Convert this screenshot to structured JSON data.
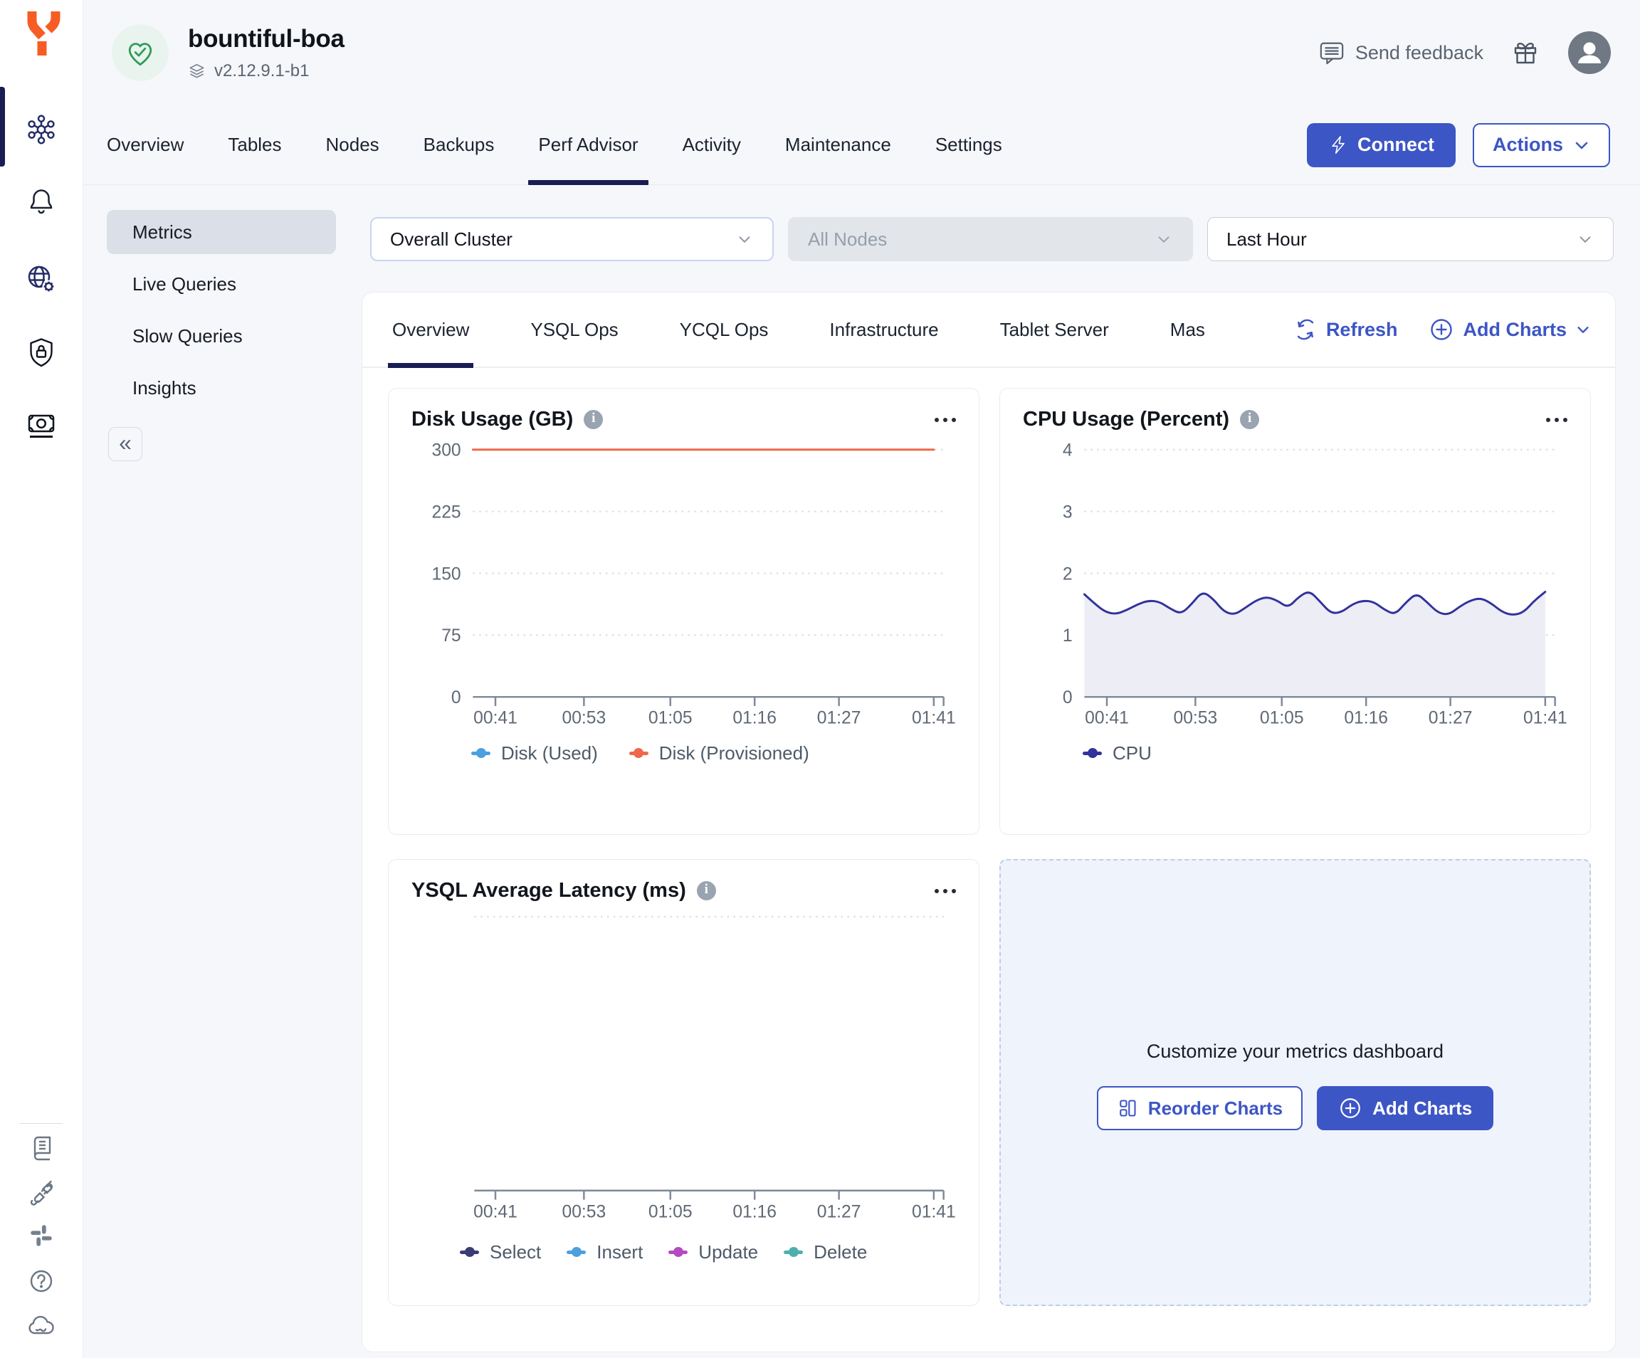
{
  "header": {
    "cluster_name": "bountiful-boa",
    "version": "v2.12.9.1-b1",
    "send_feedback_label": "Send feedback"
  },
  "nav_tabs": [
    {
      "label": "Overview",
      "active": false
    },
    {
      "label": "Tables",
      "active": false
    },
    {
      "label": "Nodes",
      "active": false
    },
    {
      "label": "Backups",
      "active": false
    },
    {
      "label": "Perf Advisor",
      "active": true
    },
    {
      "label": "Activity",
      "active": false
    },
    {
      "label": "Maintenance",
      "active": false
    },
    {
      "label": "Settings",
      "active": false
    }
  ],
  "actions": {
    "connect_label": "Connect",
    "actions_label": "Actions"
  },
  "subnav": {
    "items": [
      {
        "label": "Metrics",
        "active": true
      },
      {
        "label": "Live Queries",
        "active": false
      },
      {
        "label": "Slow Queries",
        "active": false
      },
      {
        "label": "Insights",
        "active": false
      }
    ]
  },
  "filters": {
    "scope": "Overall Cluster",
    "nodes": "All Nodes",
    "time_range": "Last Hour"
  },
  "metrics_tabs": [
    {
      "label": "Overview",
      "active": true
    },
    {
      "label": "YSQL Ops",
      "active": false
    },
    {
      "label": "YCQL Ops",
      "active": false
    },
    {
      "label": "Infrastructure",
      "active": false
    },
    {
      "label": "Tablet Server",
      "active": false
    },
    {
      "label": "Mas",
      "active": false
    }
  ],
  "metrics_toolbar": {
    "refresh_label": "Refresh",
    "add_charts_label": "Add Charts"
  },
  "customize_panel": {
    "title": "Customize your metrics dashboard",
    "reorder_label": "Reorder Charts",
    "add_label": "Add Charts"
  },
  "theme": {
    "accent_blue": "#3D56C5",
    "active_navy": "#191D52",
    "logo_orange": "#F75C24",
    "health_green": "#2E9C57"
  },
  "chart_data": [
    {
      "type": "line",
      "title": "Disk Usage (GB)",
      "xlabel": "",
      "ylabel": "",
      "ylim": [
        0,
        300
      ],
      "yticks": [
        0,
        75,
        150,
        225,
        300
      ],
      "show_ylabels": true,
      "x_ticks": [
        "00:41",
        "00:53",
        "01:05",
        "01:16",
        "01:27",
        "01:41"
      ],
      "grid": true,
      "legend_position": "bottom",
      "series": [
        {
          "name": "Disk (Used)",
          "color": "#4D9FDE",
          "values": []
        },
        {
          "name": "Disk (Provisioned)",
          "color": "#F0684C",
          "values": [
            300,
            300,
            300,
            300,
            300,
            300,
            300,
            300,
            300,
            300
          ]
        }
      ]
    },
    {
      "type": "area",
      "title": "CPU Usage (Percent)",
      "xlabel": "",
      "ylabel": "",
      "ylim": [
        0,
        4
      ],
      "yticks": [
        0,
        1,
        2,
        3,
        4
      ],
      "show_ylabels": true,
      "x_ticks": [
        "00:41",
        "00:53",
        "01:05",
        "01:16",
        "01:27",
        "01:41"
      ],
      "grid": true,
      "legend_position": "bottom",
      "series": [
        {
          "name": "CPU",
          "color": "#32329B",
          "fill": "#ECEDF5",
          "values": [
            1.66,
            1.5,
            1.37,
            1.34,
            1.41,
            1.5,
            1.56,
            1.54,
            1.43,
            1.34,
            1.5,
            1.71,
            1.59,
            1.38,
            1.33,
            1.44,
            1.56,
            1.62,
            1.56,
            1.44,
            1.62,
            1.72,
            1.54,
            1.35,
            1.37,
            1.5,
            1.56,
            1.54,
            1.41,
            1.33,
            1.53,
            1.68,
            1.53,
            1.36,
            1.33,
            1.46,
            1.56,
            1.6,
            1.51,
            1.37,
            1.32,
            1.37,
            1.56,
            1.7
          ]
        }
      ]
    },
    {
      "type": "line",
      "title": "YSQL Average Latency (ms)",
      "xlabel": "",
      "ylabel": "",
      "ylim": [
        0,
        1
      ],
      "yticks": [
        1
      ],
      "show_ylabels": false,
      "x_ticks": [
        "00:41",
        "00:53",
        "01:05",
        "01:16",
        "01:27",
        "01:41"
      ],
      "grid": true,
      "legend_position": "bottom",
      "series": [
        {
          "name": "Select",
          "color": "#3B3B75",
          "values": []
        },
        {
          "name": "Insert",
          "color": "#4D9FDE",
          "values": []
        },
        {
          "name": "Update",
          "color": "#B44BC1",
          "values": []
        },
        {
          "name": "Delete",
          "color": "#4FAEAE",
          "values": []
        }
      ]
    }
  ]
}
